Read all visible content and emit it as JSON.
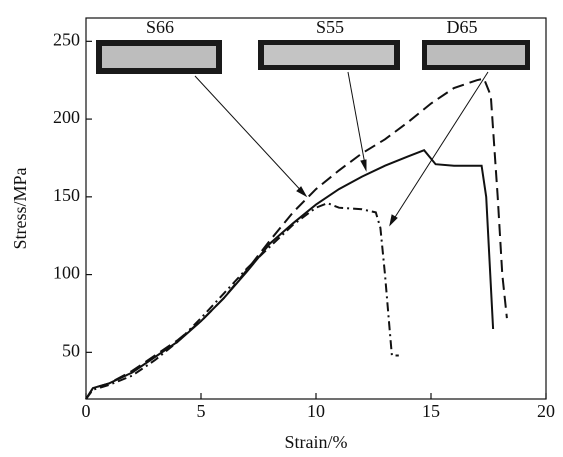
{
  "chart_data": {
    "type": "line",
    "x_label": "Strain/%",
    "y_label": "Stress/MPa",
    "xlim": [
      0,
      20
    ],
    "ylim": [
      20,
      265
    ],
    "xticks": [
      0,
      5,
      10,
      15,
      20
    ],
    "yticks": [
      50,
      100,
      150,
      200,
      250
    ],
    "series": [
      {
        "name": "S66",
        "color": "#111111",
        "dash": "12,6",
        "x": [
          0,
          0.3,
          1,
          2,
          3,
          4,
          5,
          6,
          7,
          8,
          9,
          10,
          11,
          12,
          13,
          14,
          15,
          16,
          17,
          17.3,
          17.6,
          17.9,
          18.1,
          18.3
        ],
        "values": [
          20,
          27,
          30,
          38,
          48,
          58,
          70,
          85,
          103,
          122,
          140,
          155,
          167,
          178,
          187,
          198,
          210,
          220,
          225,
          226,
          215,
          150,
          100,
          72
        ]
      },
      {
        "name": "S55",
        "color": "#111111",
        "dash": "none",
        "x": [
          0,
          0.3,
          1,
          2,
          3,
          4,
          5,
          6,
          7,
          8,
          9,
          10,
          11,
          12,
          13,
          14,
          14.7,
          15.2,
          16,
          17.2,
          17.4,
          17.7
        ],
        "values": [
          20,
          27,
          30,
          37,
          47,
          57,
          70,
          85,
          102,
          120,
          133,
          145,
          155,
          163,
          170,
          176,
          180,
          171,
          170,
          170,
          150,
          65
        ]
      },
      {
        "name": "D65",
        "color": "#111111",
        "dash": "9,4,2,4",
        "x": [
          0,
          0.3,
          1,
          2,
          3,
          4,
          5,
          6,
          7,
          8,
          9,
          10,
          10.5,
          11,
          12,
          12.6,
          12.8,
          13,
          13.2,
          13.3,
          13.6
        ],
        "values": [
          20,
          26,
          29,
          35,
          45,
          57,
          72,
          88,
          104,
          118,
          132,
          143,
          146,
          143,
          142,
          140,
          130,
          100,
          65,
          48,
          48
        ]
      }
    ]
  }
}
